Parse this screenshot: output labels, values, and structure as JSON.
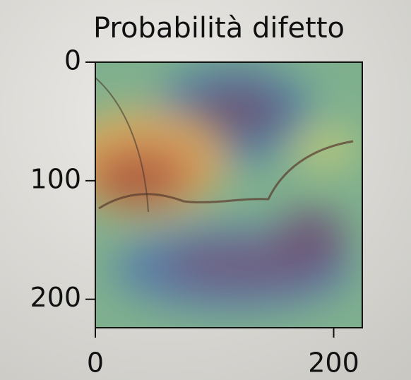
{
  "chart_data": {
    "type": "heatmap",
    "title": "Probabilità difetto",
    "xlim": [
      0,
      224
    ],
    "ylim": [
      224,
      0
    ],
    "xticks": [
      0,
      200
    ],
    "yticks": [
      0,
      100,
      200
    ]
  }
}
